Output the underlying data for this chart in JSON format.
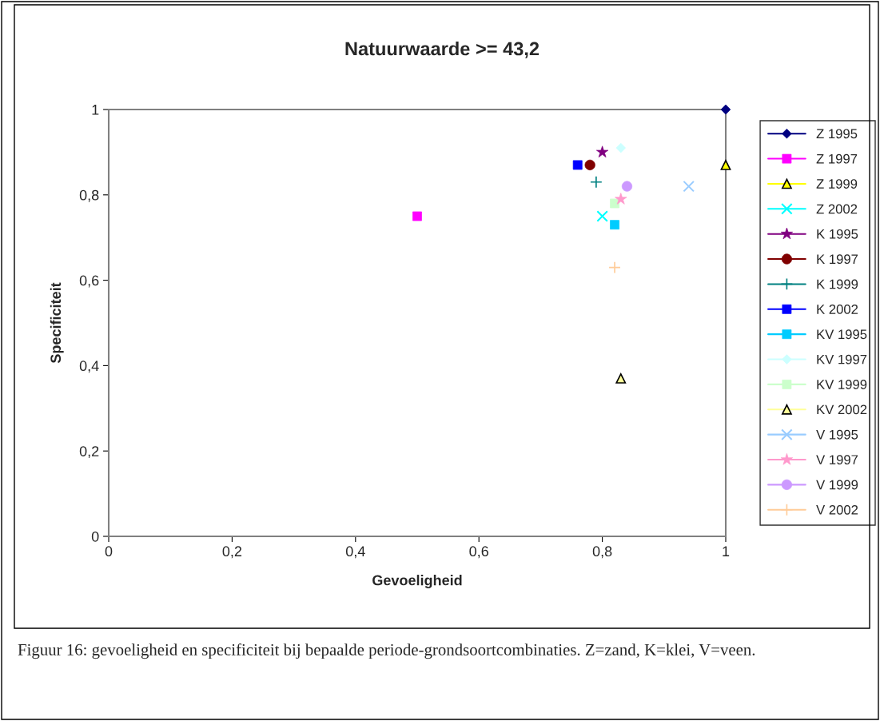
{
  "chart_data": {
    "type": "scatter",
    "title": "Natuurwaarde >= 43,2",
    "xlabel": "Gevoeligheid",
    "ylabel": "Specificiteit",
    "xlim": [
      0,
      1
    ],
    "ylim": [
      0,
      1
    ],
    "xticks": [
      {
        "value": 0,
        "label": "0"
      },
      {
        "value": 0.2,
        "label": "0,2"
      },
      {
        "value": 0.4,
        "label": "0,4"
      },
      {
        "value": 0.6,
        "label": "0,6"
      },
      {
        "value": 0.8,
        "label": "0,8"
      },
      {
        "value": 1,
        "label": "1"
      }
    ],
    "yticks": [
      {
        "value": 0,
        "label": "0"
      },
      {
        "value": 0.2,
        "label": "0,2"
      },
      {
        "value": 0.4,
        "label": "0,4"
      },
      {
        "value": 0.6,
        "label": "0,6"
      },
      {
        "value": 0.8,
        "label": "0,8"
      },
      {
        "value": 1,
        "label": "1"
      }
    ],
    "grid": false,
    "legend": "right",
    "annotations": [
      "Figuur 16: gevoeligheid en specificiteit bij bepaalde periode-grondsoortcombinaties. Z=zand, K=klei, V=veen."
    ],
    "series": [
      {
        "name": "Z 1995",
        "color": "#000080",
        "marker": "diamond",
        "x": [
          1
        ],
        "values": [
          1
        ]
      },
      {
        "name": "Z 1997",
        "color": "#ff00ff",
        "marker": "square",
        "x": [
          0.5
        ],
        "values": [
          0.75
        ]
      },
      {
        "name": "Z 1999",
        "color": "#ffff00",
        "marker": "triangle",
        "x": [
          1
        ],
        "values": [
          0.87
        ]
      },
      {
        "name": "Z 2002",
        "color": "#00ffff",
        "marker": "cross",
        "x": [
          0.8
        ],
        "values": [
          0.75
        ]
      },
      {
        "name": "K 1995",
        "color": "#800080",
        "marker": "star",
        "x": [
          0.8
        ],
        "values": [
          0.9
        ]
      },
      {
        "name": "K 1997",
        "color": "#800000",
        "marker": "circle",
        "x": [
          0.78
        ],
        "values": [
          0.87
        ]
      },
      {
        "name": "K 1999",
        "color": "#008080",
        "marker": "plus",
        "x": [
          0.79
        ],
        "values": [
          0.83
        ]
      },
      {
        "name": "K 2002",
        "color": "#0000ff",
        "marker": "square",
        "x": [
          0.76
        ],
        "values": [
          0.87
        ]
      },
      {
        "name": "KV 1995",
        "color": "#00ccff",
        "marker": "square",
        "x": [
          0.82
        ],
        "values": [
          0.73
        ]
      },
      {
        "name": "KV 1997",
        "color": "#ccffff",
        "marker": "diamond",
        "x": [
          0.83
        ],
        "values": [
          0.91
        ]
      },
      {
        "name": "KV 1999",
        "color": "#ccffcc",
        "marker": "square",
        "x": [
          0.82
        ],
        "values": [
          0.78
        ]
      },
      {
        "name": "KV 2002",
        "color": "#ffff99",
        "marker": "triangle",
        "x": [
          0.83
        ],
        "values": [
          0.37
        ]
      },
      {
        "name": "V 1995",
        "color": "#99ccff",
        "marker": "cross",
        "x": [
          0.94
        ],
        "values": [
          0.82
        ]
      },
      {
        "name": "V 1997",
        "color": "#ff99cc",
        "marker": "star",
        "x": [
          0.83
        ],
        "values": [
          0.79
        ]
      },
      {
        "name": "V 1999",
        "color": "#cc99ff",
        "marker": "circle",
        "x": [
          0.84
        ],
        "values": [
          0.82
        ]
      },
      {
        "name": "V 2002",
        "color": "#ffcc99",
        "marker": "plus",
        "x": [
          0.82
        ],
        "values": [
          0.63
        ]
      }
    ]
  }
}
